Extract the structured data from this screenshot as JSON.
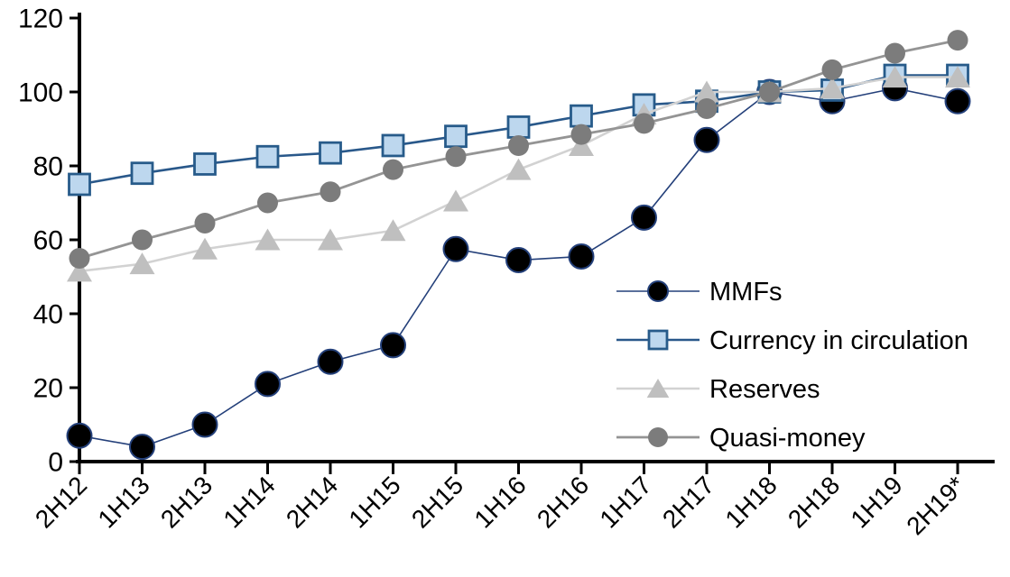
{
  "chart": {
    "background": "#FFFFFF",
    "axis_color": "#000000",
    "text_color": "#000000"
  },
  "chart_data": {
    "type": "line",
    "title": "",
    "xlabel": "",
    "ylabel": "",
    "grid": false,
    "legend_position": "inside-right",
    "categories": [
      "2H12",
      "1H13",
      "2H13",
      "1H14",
      "2H14",
      "1H15",
      "2H15",
      "1H16",
      "2H16",
      "1H17",
      "2H17",
      "1H18",
      "2H18",
      "1H19",
      "2H19*"
    ],
    "y_axis": {
      "min": 0,
      "max": 120,
      "ticks": [
        0,
        20,
        40,
        60,
        80,
        100,
        120
      ]
    },
    "series": [
      {
        "name": "MMFs",
        "marker": "circle",
        "line_color": "#24407A",
        "marker_fill": "#000000",
        "marker_stroke": "#24407A",
        "line_width": 1.6,
        "marker_size": 13.5,
        "values": [
          7,
          4,
          10,
          21,
          27,
          31.5,
          57.5,
          54.5,
          55.5,
          66,
          87,
          100,
          97.5,
          101,
          97.5
        ]
      },
      {
        "name": "Currency in circulation",
        "marker": "square",
        "line_color": "#29588A",
        "marker_fill": "#BDD7EE",
        "marker_stroke": "#275B8A",
        "line_width": 2.6,
        "marker_size": 11.5,
        "values": [
          75,
          78,
          80.5,
          82.5,
          83.5,
          85.5,
          88,
          90.5,
          93.5,
          96.5,
          97.5,
          100,
          100.5,
          104.5,
          104.5
        ]
      },
      {
        "name": "Reserves",
        "marker": "triangle",
        "line_color": "#D2D2D2",
        "marker_fill": "#BFBFBF",
        "marker_stroke": "none",
        "line_width": 2.6,
        "marker_size": 12.5,
        "values": [
          51.5,
          53.5,
          57.5,
          60,
          60,
          62.5,
          70.5,
          79,
          85.5,
          94,
          100,
          100,
          101,
          104,
          104
        ]
      },
      {
        "name": "Quasi-money",
        "marker": "circle",
        "line_color": "#949494",
        "marker_fill": "#7C7C7C",
        "marker_stroke": "none",
        "line_width": 2.8,
        "marker_size": 11.5,
        "values": [
          55,
          60,
          64.5,
          70,
          73,
          79,
          82.5,
          85.5,
          88.5,
          91.5,
          95.5,
          100,
          106,
          110.5,
          114
        ]
      }
    ]
  }
}
